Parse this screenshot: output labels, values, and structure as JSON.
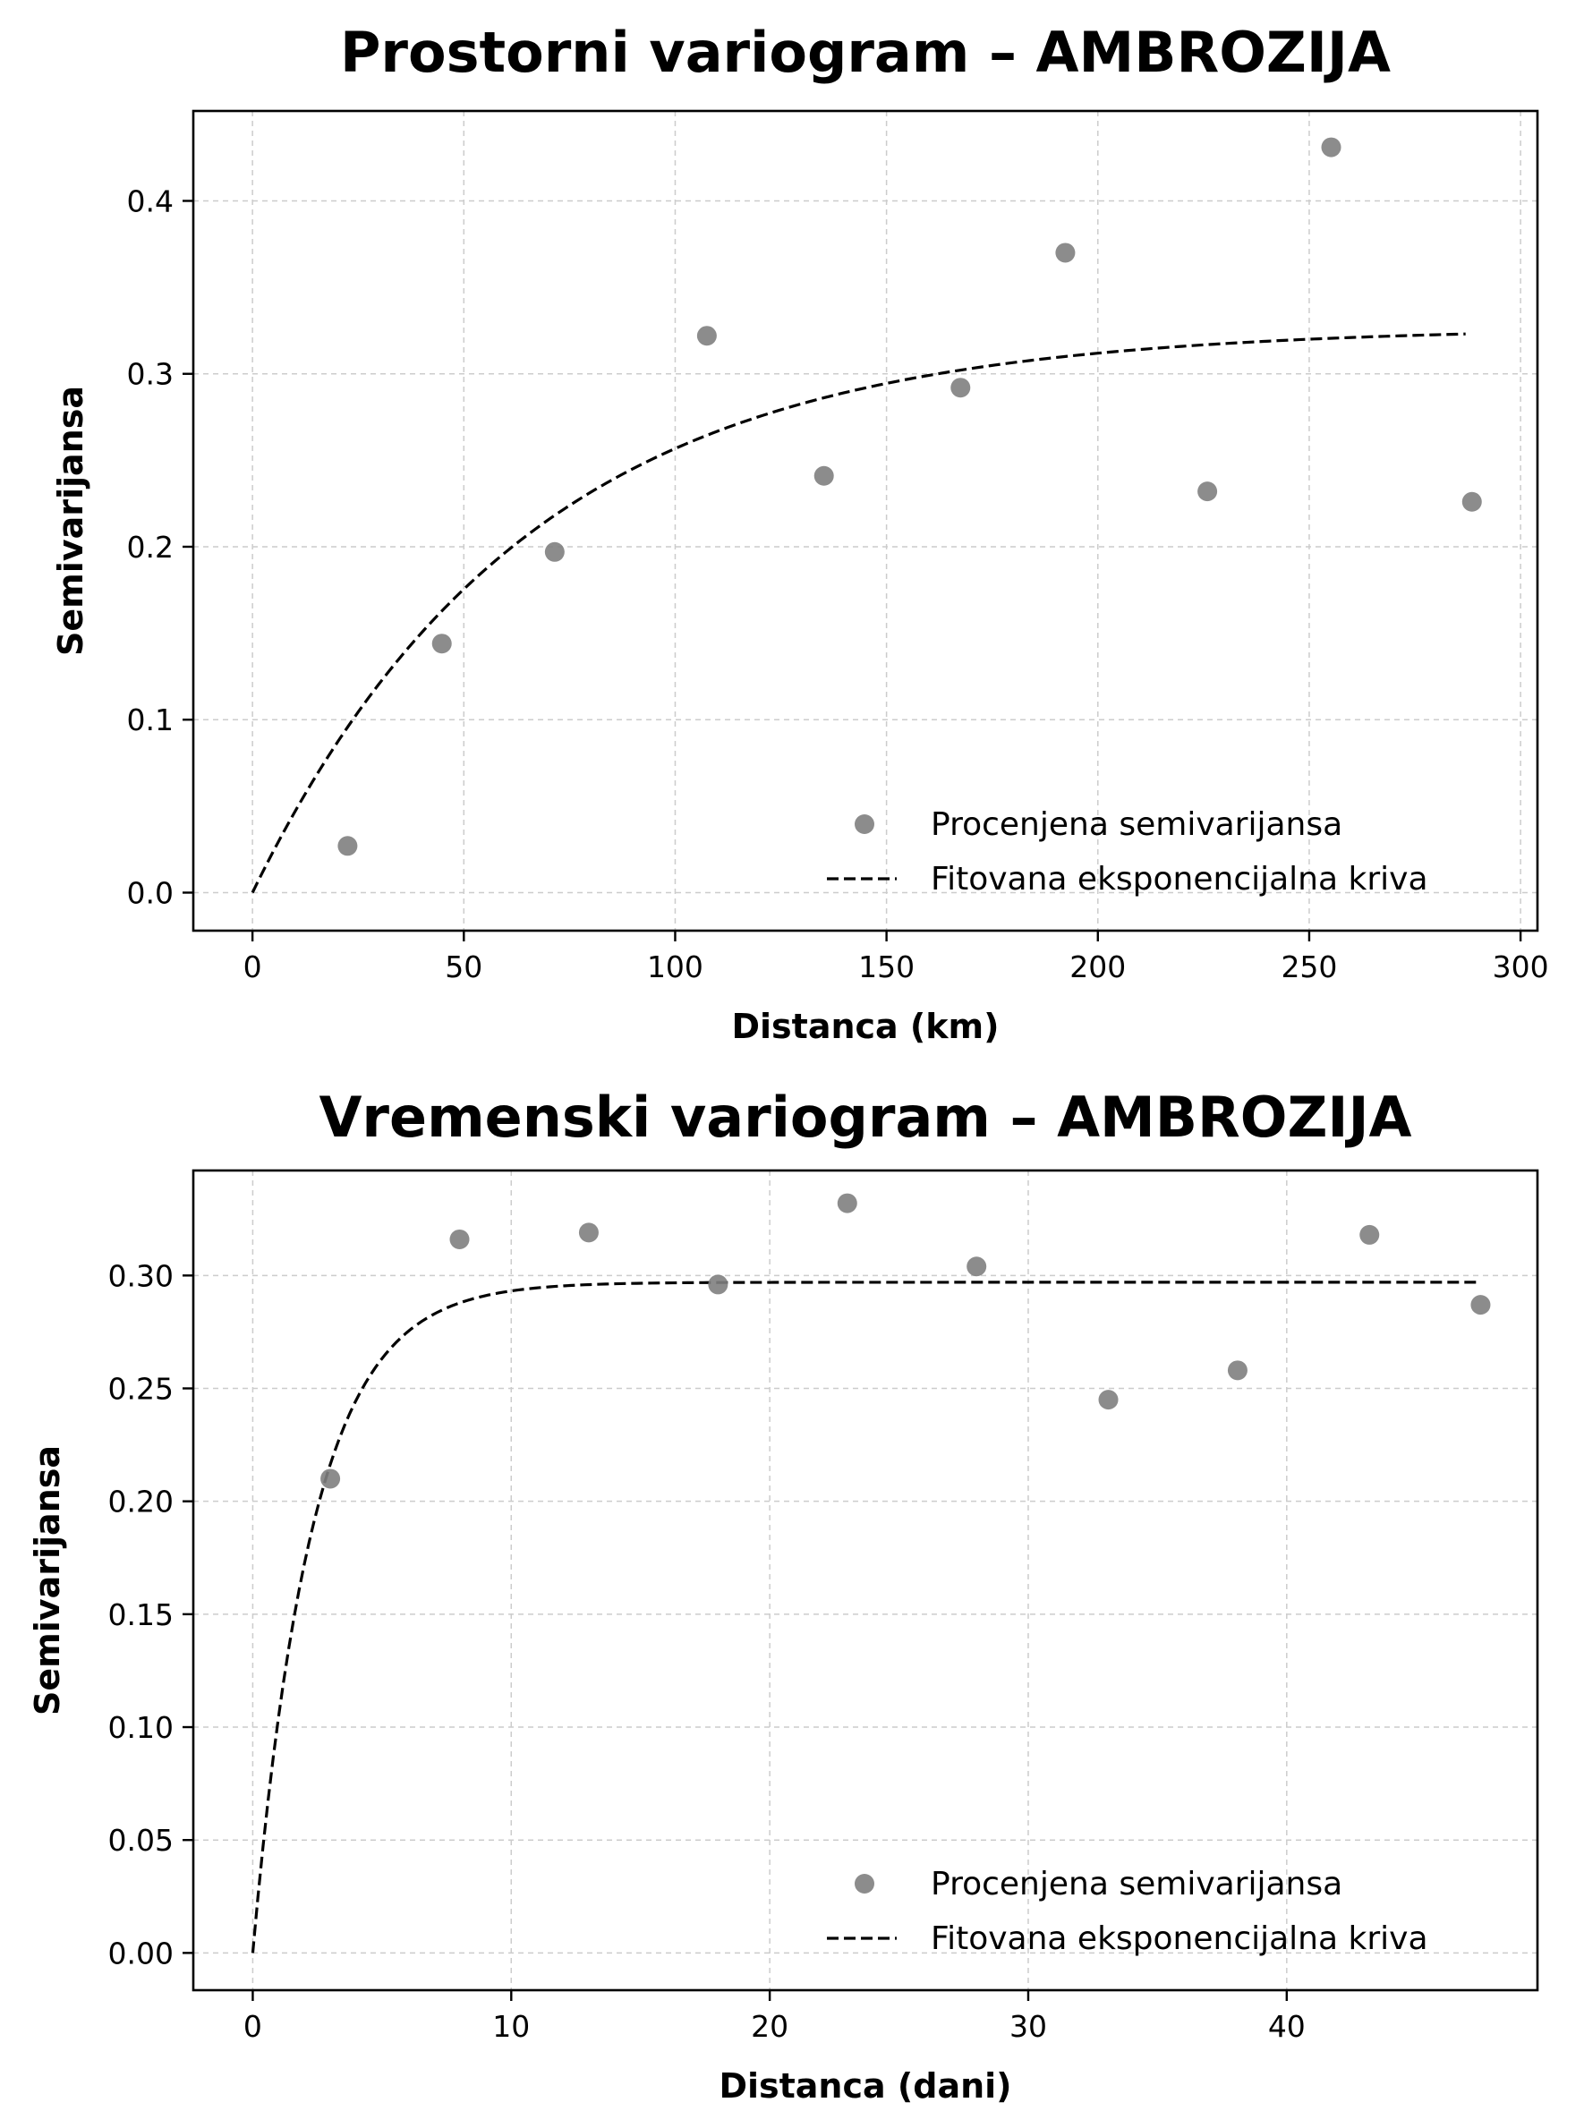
{
  "chart_data": [
    {
      "type": "scatter",
      "title": "Prostorni variogram – AMBROZIJA",
      "xlabel": "Distanca (km)",
      "ylabel": "Semivarijansa",
      "xlim": [
        -14,
        304
      ],
      "ylim": [
        -0.022,
        0.452
      ],
      "xticks": [
        0,
        50,
        100,
        150,
        200,
        250,
        300
      ],
      "xtick_labels": [
        "0",
        "50",
        "100",
        "150",
        "200",
        "250",
        "300"
      ],
      "yticks": [
        0.0,
        0.1,
        0.2,
        0.3,
        0.4
      ],
      "ytick_labels": [
        "0.0",
        "0.1",
        "0.2",
        "0.3",
        "0.4"
      ],
      "grid": true,
      "legend_position": "lower-right",
      "series": [
        {
          "name": "Procenjena semivarijansa",
          "kind": "scatter",
          "color": "#808080",
          "x": [
            22.5,
            44.8,
            71.5,
            107.5,
            135.2,
            167.5,
            192.3,
            225.9,
            255.2,
            288.5
          ],
          "y": [
            0.027,
            0.144,
            0.197,
            0.322,
            0.241,
            0.292,
            0.37,
            0.232,
            0.431,
            0.226
          ]
        },
        {
          "name": "Fitovana eksponencijalna kriva",
          "kind": "line",
          "style": "dashed",
          "color": "#000000",
          "model": "exponential",
          "sill": 0.327,
          "range": 65,
          "x_range": [
            0,
            287
          ]
        }
      ]
    },
    {
      "type": "scatter",
      "title": "Vremenski variogram – AMBROZIJA",
      "xlabel": "Distanca (dani)",
      "ylabel": "Semivarijansa",
      "xlim": [
        -2.3,
        49.7
      ],
      "ylim": [
        -0.0165,
        0.3465
      ],
      "xticks": [
        0,
        10,
        20,
        30,
        40
      ],
      "xtick_labels": [
        "0",
        "10",
        "20",
        "30",
        "40"
      ],
      "yticks": [
        0.0,
        0.05,
        0.1,
        0.15,
        0.2,
        0.25,
        0.3
      ],
      "ytick_labels": [
        "0.00",
        "0.05",
        "0.10",
        "0.15",
        "0.20",
        "0.25",
        "0.30"
      ],
      "grid": true,
      "legend_position": "lower-right",
      "series": [
        {
          "name": "Procenjena semivarijansa",
          "kind": "scatter",
          "color": "#808080",
          "x": [
            3.0,
            8.0,
            13.0,
            18.0,
            23.0,
            28.0,
            33.1,
            38.1,
            43.2,
            47.5
          ],
          "y": [
            0.21,
            0.316,
            0.319,
            0.296,
            0.332,
            0.304,
            0.245,
            0.258,
            0.318,
            0.287
          ]
        },
        {
          "name": "Fitovana eksponencijalna kriva",
          "kind": "line",
          "style": "dashed",
          "color": "#000000",
          "model": "exponential",
          "sill": 0.297,
          "range": 2.3,
          "x_range": [
            0,
            47.5
          ]
        }
      ]
    }
  ]
}
